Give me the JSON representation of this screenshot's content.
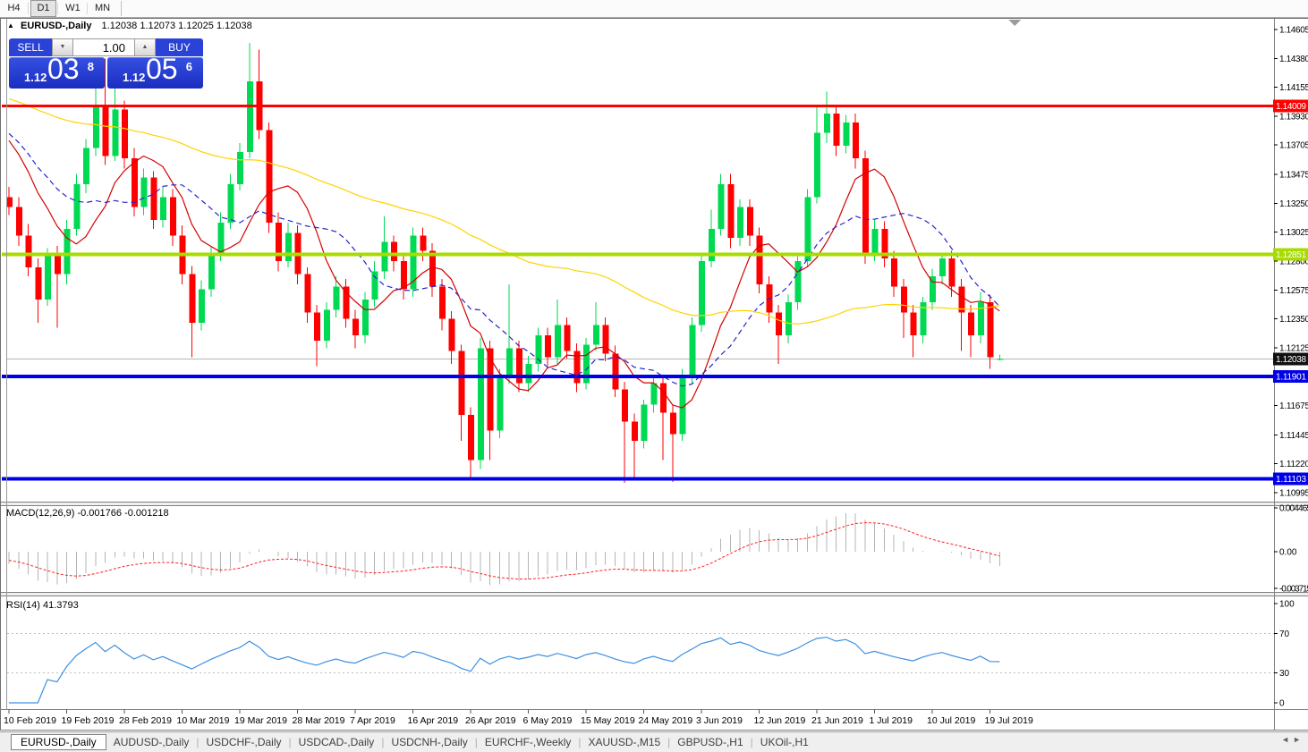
{
  "toolbar": {
    "timeframes": [
      "H4",
      "D1",
      "W1",
      "MN"
    ],
    "active_timeframe": "D1"
  },
  "chart": {
    "collapse_icon": "▲",
    "title_symbol": "EURUSD-,Daily",
    "ohlc_text": "1.12038 1.12073 1.12025 1.12038"
  },
  "trade_panel": {
    "sell_label": "SELL",
    "buy_label": "BUY",
    "volume": "1.00",
    "down_glyph": "▼",
    "up_glyph": "▲",
    "sell_price": {
      "prefix": "1.12",
      "big": "03",
      "sup": "8"
    },
    "buy_price": {
      "prefix": "1.12",
      "big": "05",
      "sup": "6"
    }
  },
  "indicators": {
    "macd": {
      "label": "MACD(12,26,9) -0.001766 -0.001218",
      "last_main": -0.001766,
      "last_signal": -0.001218
    },
    "rsi": {
      "label": "RSI(14) 41.3793",
      "last_value": 41.3793
    }
  },
  "tabs": {
    "items": [
      "EURUSD-,Daily",
      "AUDUSD-,Daily",
      "USDCHF-,Daily",
      "USDCAD-,Daily",
      "USDCNH-,Daily",
      "EURCHF-,Weekly",
      "XAUUSD-,M15",
      "GBPUSD-,H1",
      "UKOil-,H1"
    ],
    "active_index": 0,
    "scroll_left": "◄",
    "scroll_right": "►"
  },
  "chart_data": [
    {
      "type": "candlestick",
      "symbol": "EURUSD-",
      "timeframe": "Daily",
      "bull_color": "#00DA52",
      "bear_color": "#FF0000",
      "ylim": [
        1.10946,
        1.1464
      ],
      "y_axis_ticks": [
        "1.14605",
        "1.14380",
        "1.14155",
        "1.13930",
        "1.13705",
        "1.13475",
        "1.13250",
        "1.13025",
        "1.12800",
        "1.12575",
        "1.12350",
        "1.12125",
        "1.11675",
        "1.11445",
        "1.11220",
        "1.10995"
      ],
      "x_labels": [
        "10 Feb 2019",
        "19 Feb 2019",
        "28 Feb 2019",
        "10 Mar 2019",
        "19 Mar 2019",
        "28 Mar 2019",
        "7 Apr 2019",
        "16 Apr 2019",
        "26 Apr 2019",
        "6 May 2019",
        "15 May 2019",
        "24 May 2019",
        "3 Jun 2019",
        "12 Jun 2019",
        "21 Jun 2019",
        "1 Jul 2019",
        "10 Jul 2019",
        "19 Jul 2019"
      ],
      "x_tick_every": 6,
      "hlines": [
        {
          "value": 1.14009,
          "label": "1.14009",
          "color": "#FF0000",
          "width": 3
        },
        {
          "value": 1.12851,
          "label": "1.12851",
          "color": "#A8DC00",
          "width": 4
        },
        {
          "value": 1.11901,
          "label": "1.11901",
          "color": "#0000E8",
          "width": 4
        },
        {
          "value": 1.11103,
          "label": "1.11103",
          "color": "#0000E8",
          "width": 4
        }
      ],
      "current_price": {
        "value": 1.12038,
        "label": "1.12038",
        "line_color": "#B4B4B4",
        "label_bg": "#101010"
      },
      "moving_averages": [
        {
          "name": "fast",
          "period": 8,
          "color": "#D40000",
          "style": "solid"
        },
        {
          "name": "medium",
          "period": 13,
          "color": "#2626CC",
          "style": "dashed"
        },
        {
          "name": "slow",
          "period": 55,
          "color": "#FFD200",
          "style": "solid"
        }
      ],
      "candles": [
        [
          1.133,
          1.1338,
          1.1316,
          1.1322
        ],
        [
          1.1322,
          1.133,
          1.1292,
          1.13
        ],
        [
          1.13,
          1.1309,
          1.1268,
          1.1275
        ],
        [
          1.1275,
          1.1282,
          1.1232,
          1.125
        ],
        [
          1.125,
          1.129,
          1.1245,
          1.1285
        ],
        [
          1.1285,
          1.1292,
          1.1228,
          1.127
        ],
        [
          1.127,
          1.1312,
          1.1262,
          1.1305
        ],
        [
          1.1305,
          1.1348,
          1.13,
          1.134
        ],
        [
          1.134,
          1.1375,
          1.1333,
          1.1368
        ],
        [
          1.1368,
          1.1422,
          1.1362,
          1.14
        ],
        [
          1.14,
          1.1438,
          1.1355,
          1.1362
        ],
        [
          1.1362,
          1.143,
          1.1358,
          1.1398
        ],
        [
          1.1398,
          1.1405,
          1.1352,
          1.136
        ],
        [
          1.136,
          1.1368,
          1.1315,
          1.1322
        ],
        [
          1.1322,
          1.1352,
          1.1316,
          1.1345
        ],
        [
          1.1345,
          1.135,
          1.1305,
          1.1312
        ],
        [
          1.1312,
          1.1338,
          1.1306,
          1.133
        ],
        [
          1.133,
          1.1336,
          1.1292,
          1.13
        ],
        [
          1.13,
          1.1308,
          1.1262,
          1.127
        ],
        [
          1.127,
          1.1276,
          1.1205,
          1.1232
        ],
        [
          1.1232,
          1.1265,
          1.1226,
          1.1258
        ],
        [
          1.1258,
          1.1292,
          1.1252,
          1.1285
        ],
        [
          1.1285,
          1.1318,
          1.128,
          1.131
        ],
        [
          1.131,
          1.1348,
          1.1305,
          1.134
        ],
        [
          1.134,
          1.1372,
          1.1335,
          1.1365
        ],
        [
          1.1365,
          1.145,
          1.136,
          1.142
        ],
        [
          1.142,
          1.1445,
          1.1375,
          1.1382
        ],
        [
          1.1382,
          1.1388,
          1.1302,
          1.131
        ],
        [
          1.131,
          1.1318,
          1.1272,
          1.128
        ],
        [
          1.128,
          1.131,
          1.1275,
          1.1302
        ],
        [
          1.1302,
          1.1308,
          1.1262,
          1.127
        ],
        [
          1.127,
          1.1275,
          1.1232,
          1.124
        ],
        [
          1.124,
          1.1246,
          1.1198,
          1.1218
        ],
        [
          1.1218,
          1.1248,
          1.1212,
          1.1242
        ],
        [
          1.1242,
          1.1268,
          1.1236,
          1.126
        ],
        [
          1.126,
          1.1266,
          1.1228,
          1.1235
        ],
        [
          1.1235,
          1.1242,
          1.1212,
          1.1222
        ],
        [
          1.1222,
          1.1256,
          1.1216,
          1.125
        ],
        [
          1.125,
          1.128,
          1.1244,
          1.1272
        ],
        [
          1.1272,
          1.1315,
          1.1266,
          1.1295
        ],
        [
          1.1295,
          1.13,
          1.1272,
          1.128
        ],
        [
          1.128,
          1.1286,
          1.125,
          1.1258
        ],
        [
          1.1258,
          1.1306,
          1.1252,
          1.13
        ],
        [
          1.13,
          1.1306,
          1.128,
          1.1288
        ],
        [
          1.1288,
          1.1294,
          1.1252,
          1.126
        ],
        [
          1.126,
          1.1266,
          1.1226,
          1.1235
        ],
        [
          1.1235,
          1.1241,
          1.12,
          1.121
        ],
        [
          1.121,
          1.1215,
          1.114,
          1.116
        ],
        [
          1.116,
          1.1166,
          1.1111,
          1.1125
        ],
        [
          1.1125,
          1.122,
          1.1118,
          1.1212
        ],
        [
          1.1212,
          1.1218,
          1.1125,
          1.1148
        ],
        [
          1.1148,
          1.1196,
          1.1142,
          1.119
        ],
        [
          1.119,
          1.1262,
          1.1184,
          1.1212
        ],
        [
          1.1212,
          1.1218,
          1.1178,
          1.1185
        ],
        [
          1.1185,
          1.1206,
          1.1178,
          1.12
        ],
        [
          1.12,
          1.1228,
          1.1194,
          1.1222
        ],
        [
          1.1222,
          1.1228,
          1.1198,
          1.1205
        ],
        [
          1.1205,
          1.125,
          1.12,
          1.123
        ],
        [
          1.123,
          1.1236,
          1.1204,
          1.121
        ],
        [
          1.121,
          1.1216,
          1.1178,
          1.1185
        ],
        [
          1.1185,
          1.122,
          1.118,
          1.1215
        ],
        [
          1.1215,
          1.1248,
          1.121,
          1.123
        ],
        [
          1.123,
          1.1236,
          1.1202,
          1.1208
        ],
        [
          1.1208,
          1.1214,
          1.1174,
          1.118
        ],
        [
          1.118,
          1.1186,
          1.1107,
          1.1155
        ],
        [
          1.1155,
          1.1161,
          1.111,
          1.114
        ],
        [
          1.114,
          1.1172,
          1.1134,
          1.1168
        ],
        [
          1.1168,
          1.119,
          1.1162,
          1.1185
        ],
        [
          1.1185,
          1.1191,
          1.1125,
          1.1162
        ],
        [
          1.1162,
          1.1168,
          1.1108,
          1.1145
        ],
        [
          1.1145,
          1.1196,
          1.114,
          1.119
        ],
        [
          1.119,
          1.1236,
          1.1185,
          1.123
        ],
        [
          1.123,
          1.1285,
          1.1225,
          1.128
        ],
        [
          1.128,
          1.132,
          1.1275,
          1.1305
        ],
        [
          1.1305,
          1.1348,
          1.13,
          1.134
        ],
        [
          1.134,
          1.1348,
          1.129,
          1.1298
        ],
        [
          1.1298,
          1.1328,
          1.1292,
          1.1322
        ],
        [
          1.1322,
          1.1328,
          1.1292,
          1.13
        ],
        [
          1.13,
          1.1306,
          1.1255,
          1.1262
        ],
        [
          1.1262,
          1.1268,
          1.1232,
          1.124
        ],
        [
          1.124,
          1.1246,
          1.12,
          1.1222
        ],
        [
          1.1222,
          1.1254,
          1.1216,
          1.1248
        ],
        [
          1.1248,
          1.1286,
          1.1242,
          1.128
        ],
        [
          1.128,
          1.1336,
          1.1275,
          1.133
        ],
        [
          1.133,
          1.14,
          1.1325,
          1.138
        ],
        [
          1.138,
          1.1412,
          1.1372,
          1.1395
        ],
        [
          1.1395,
          1.14,
          1.1362,
          1.137
        ],
        [
          1.137,
          1.1394,
          1.1364,
          1.1388
        ],
        [
          1.1388,
          1.1395,
          1.1352,
          1.136
        ],
        [
          1.136,
          1.1366,
          1.1278,
          1.1285
        ],
        [
          1.1285,
          1.1312,
          1.128,
          1.1305
        ],
        [
          1.1305,
          1.1311,
          1.1275,
          1.1282
        ],
        [
          1.1282,
          1.1288,
          1.1252,
          1.126
        ],
        [
          1.126,
          1.1266,
          1.122,
          1.124
        ],
        [
          1.124,
          1.1246,
          1.1205,
          1.1222
        ],
        [
          1.1222,
          1.1252,
          1.1216,
          1.1248
        ],
        [
          1.1248,
          1.1274,
          1.1242,
          1.1268
        ],
        [
          1.1268,
          1.1285,
          1.1262,
          1.1282
        ],
        [
          1.1282,
          1.1288,
          1.1252,
          1.126
        ],
        [
          1.126,
          1.1266,
          1.121,
          1.124
        ],
        [
          1.124,
          1.1246,
          1.1205,
          1.1222
        ],
        [
          1.1222,
          1.1256,
          1.1216,
          1.1248
        ],
        [
          1.1248,
          1.1254,
          1.1196,
          1.1205
        ],
        [
          1.12038,
          1.12073,
          1.12025,
          1.12038
        ]
      ]
    },
    {
      "type": "bar",
      "name": "MACD",
      "params": "12,26,9",
      "label": "MACD(12,26,9) -0.001766 -0.001218",
      "derived_from": "candle closes: histogram = EMA12-EMA26, signal = EMA9 of histogram",
      "axis_ticks": [
        "0.004465",
        "0.00",
        "-0.003715"
      ],
      "axis_values": [
        0.004465,
        0,
        -0.003715
      ],
      "ylim": [
        -0.003715,
        0.004465
      ],
      "histogram_color": "#B4B4B4",
      "signal_color": "#FF2020",
      "last_main": -0.001766,
      "last_signal": -0.001218
    },
    {
      "type": "line",
      "name": "RSI",
      "params": "14",
      "label": "RSI(14) 41.3793",
      "derived_from": "candle closes, Wilder RSI(14)",
      "axis_ticks": [
        "100",
        "70",
        "30",
        "0"
      ],
      "axis_values": [
        100,
        70,
        30,
        0
      ],
      "levels": [
        70,
        30
      ],
      "ylim": [
        0,
        100
      ],
      "line_color": "#3E8FE0",
      "last_value": 41.3793
    }
  ]
}
